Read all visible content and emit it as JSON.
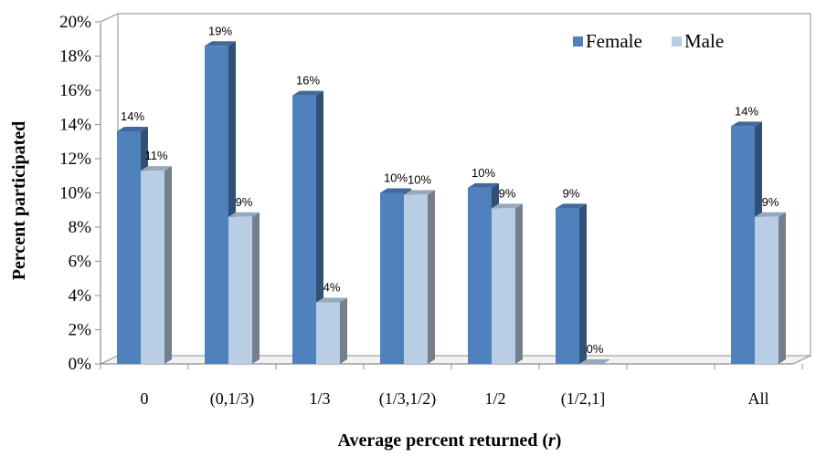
{
  "chart_data": {
    "type": "bar",
    "style": "3d-clustered-column",
    "title": "",
    "xlabel": "Average percent returned (r)",
    "xlabel_main": "Average percent returned (",
    "xlabel_var": "r",
    "xlabel_close": ")",
    "ylabel": "Percent participated",
    "ylim": [
      0,
      20
    ],
    "yticks": [
      "0%",
      "2%",
      "4%",
      "6%",
      "8%",
      "10%",
      "12%",
      "14%",
      "16%",
      "18%",
      "20%"
    ],
    "categories": [
      "0",
      "(0,1/3)",
      "1/3",
      "(1/3,1/2)",
      "1/2",
      "(1/2,1]",
      "",
      "All"
    ],
    "series": [
      {
        "name": "Female",
        "color": "#4F81BD",
        "values": [
          13.6,
          18.6,
          15.7,
          10.0,
          10.3,
          9.1,
          null,
          13.9
        ],
        "labels": [
          "14%",
          "19%",
          "16%",
          "10%",
          "10%",
          "9%",
          "",
          "14%"
        ]
      },
      {
        "name": "Male",
        "color": "#B9CDE5",
        "values": [
          11.3,
          8.6,
          3.6,
          9.9,
          9.1,
          0.0,
          null,
          8.6
        ],
        "labels": [
          "11%",
          "9%",
          "4%",
          "10%",
          "9%",
          "0%",
          "",
          "9%"
        ]
      }
    ],
    "legend_position": "top-right",
    "grid": false
  }
}
